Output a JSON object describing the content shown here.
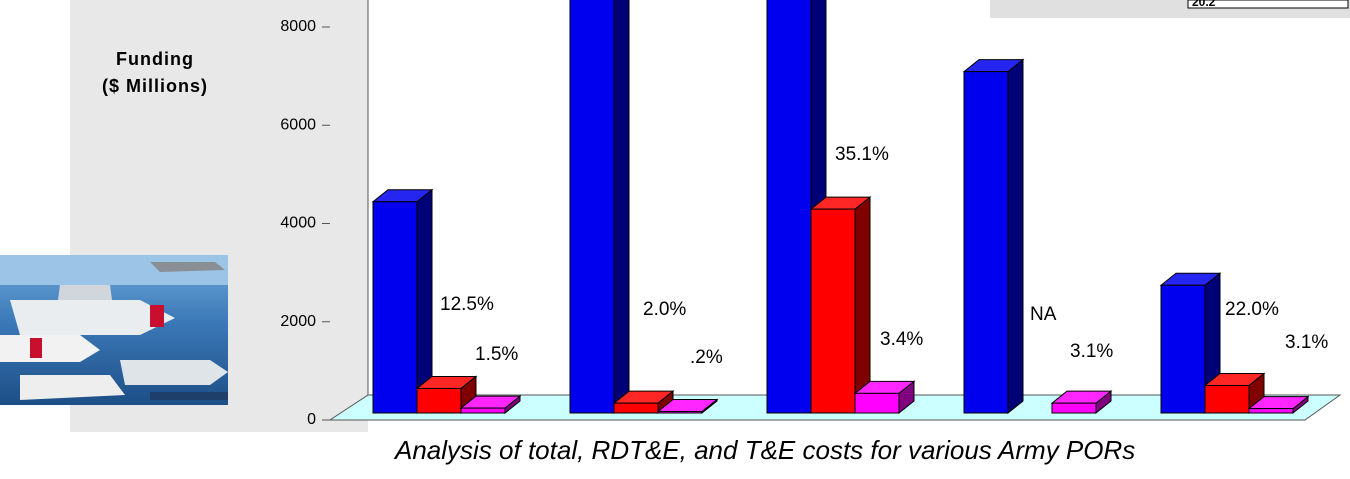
{
  "chart_data": {
    "type": "bar3d",
    "ylabel": [
      "Funding",
      "($ Millions)"
    ],
    "caption": "Analysis of total, RDT&E, and T&E costs for various Army PORs",
    "note_box": "20.2",
    "categories": [
      null,
      null,
      null,
      null,
      null
    ],
    "series": [
      {
        "color": "#0000ee",
        "values": [
          4300,
          10000,
          10000,
          6950,
          2600
        ]
      },
      {
        "color": "#ff0000",
        "values": [
          500,
          200,
          4150,
          null,
          560
        ],
        "labels": [
          "12.5%",
          "2.0%",
          "35.1%",
          "NA",
          "22.0%"
        ]
      },
      {
        "color": "#ff00ff",
        "values": [
          100,
          30,
          400,
          200,
          90
        ],
        "labels": [
          "1.5%",
          ".2%",
          "3.4%",
          "3.1%",
          "3.1%"
        ]
      }
    ],
    "ylim": [
      0,
      8600
    ],
    "yticks": [
      0,
      2000,
      4000,
      6000,
      8000
    ]
  }
}
